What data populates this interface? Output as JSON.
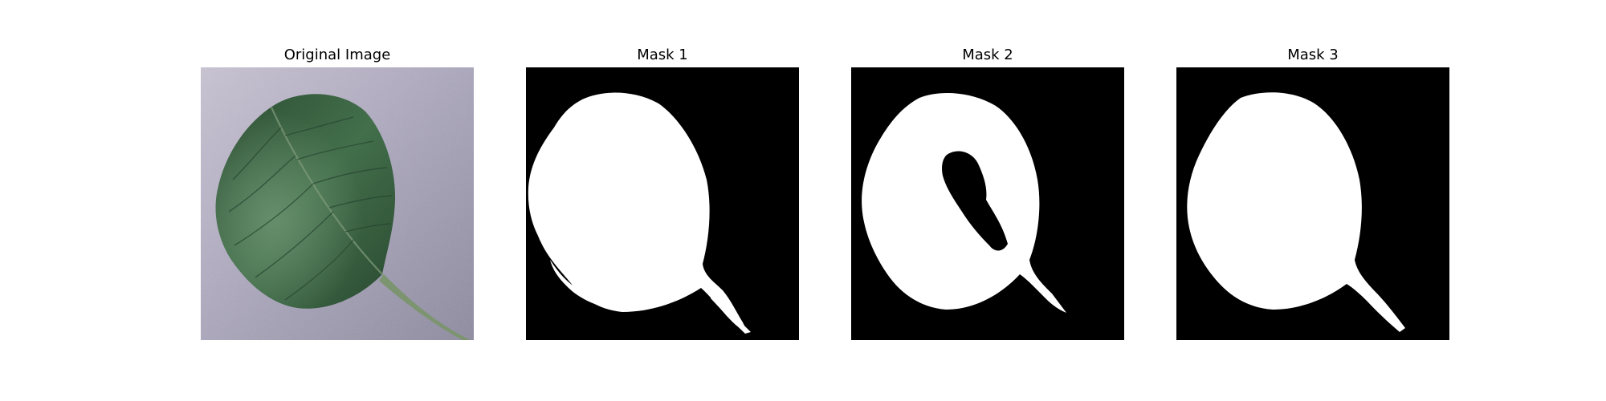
{
  "figure": {
    "panels": [
      {
        "title": "Original Image",
        "kind": "photo",
        "content": "leaf-photo"
      },
      {
        "title": "Mask 1",
        "kind": "mask",
        "content": "binary-mask",
        "colors": {
          "foreground": "#ffffff",
          "background": "#000000"
        }
      },
      {
        "title": "Mask 2",
        "kind": "mask",
        "content": "binary-mask",
        "colors": {
          "foreground": "#ffffff",
          "background": "#000000"
        }
      },
      {
        "title": "Mask 3",
        "kind": "mask",
        "content": "binary-mask",
        "colors": {
          "foreground": "#ffffff",
          "background": "#000000"
        }
      }
    ],
    "colors": {
      "photo_background": "#aaa6bc",
      "leaf_dark": "#24442c",
      "leaf_mid": "#3f6a48",
      "leaf_light": "#5d8663",
      "stem": "#7f9573"
    }
  }
}
